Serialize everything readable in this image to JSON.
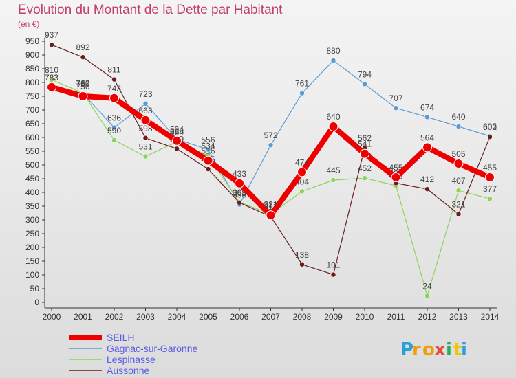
{
  "header": {
    "title": "Evolution du Montant de la Dette par Habitant",
    "unit": "(en €)"
  },
  "logo": {
    "letters": [
      "P",
      "r",
      "o",
      "x",
      "i",
      "t",
      "i"
    ],
    "colors": [
      "#2a9fd8",
      "#f39c12",
      "#f39c12",
      "#e74c3c",
      "#27ae60",
      "#f1c40f",
      "#2a9fd8"
    ]
  },
  "chart_data": {
    "type": "line",
    "x": [
      "2000",
      "2001",
      "2002",
      "2003",
      "2004",
      "2005",
      "2006",
      "2007",
      "2008",
      "2009",
      "2010",
      "2011",
      "2012",
      "2013",
      "2014"
    ],
    "ylim": [
      0,
      950
    ],
    "yticks": [
      0,
      50,
      100,
      150,
      200,
      250,
      300,
      350,
      400,
      450,
      500,
      550,
      600,
      650,
      700,
      750,
      800,
      850,
      900,
      950
    ],
    "grid": false,
    "legend_position": "bottom-left",
    "series": [
      {
        "name": "Gagnac-sur-Garonne",
        "color": "#5b9bd5",
        "values": [
          783,
          760,
          636,
          723,
          594,
          556,
          356,
          572,
          761,
          880,
          794,
          707,
          674,
          640,
          605
        ]
      },
      {
        "name": "Lespinasse",
        "color": "#8cd35a",
        "values": [
          810,
          762,
          590,
          531,
          584,
          534,
          365,
          321,
          404,
          445,
          452,
          425,
          24,
          407,
          377
        ]
      },
      {
        "name": "Aussonne",
        "color": "#6b1d1d",
        "values": [
          937,
          892,
          811,
          598,
          559,
          485,
          363,
          312,
          138,
          101,
          562,
          434,
          412,
          321,
          602
        ]
      },
      {
        "name": "SEILH",
        "color": "#ee0000",
        "values": [
          783,
          750,
          743,
          663,
          588,
          516,
          433,
          317,
          474,
          640,
          541,
          455,
          564,
          505,
          455
        ]
      }
    ]
  }
}
